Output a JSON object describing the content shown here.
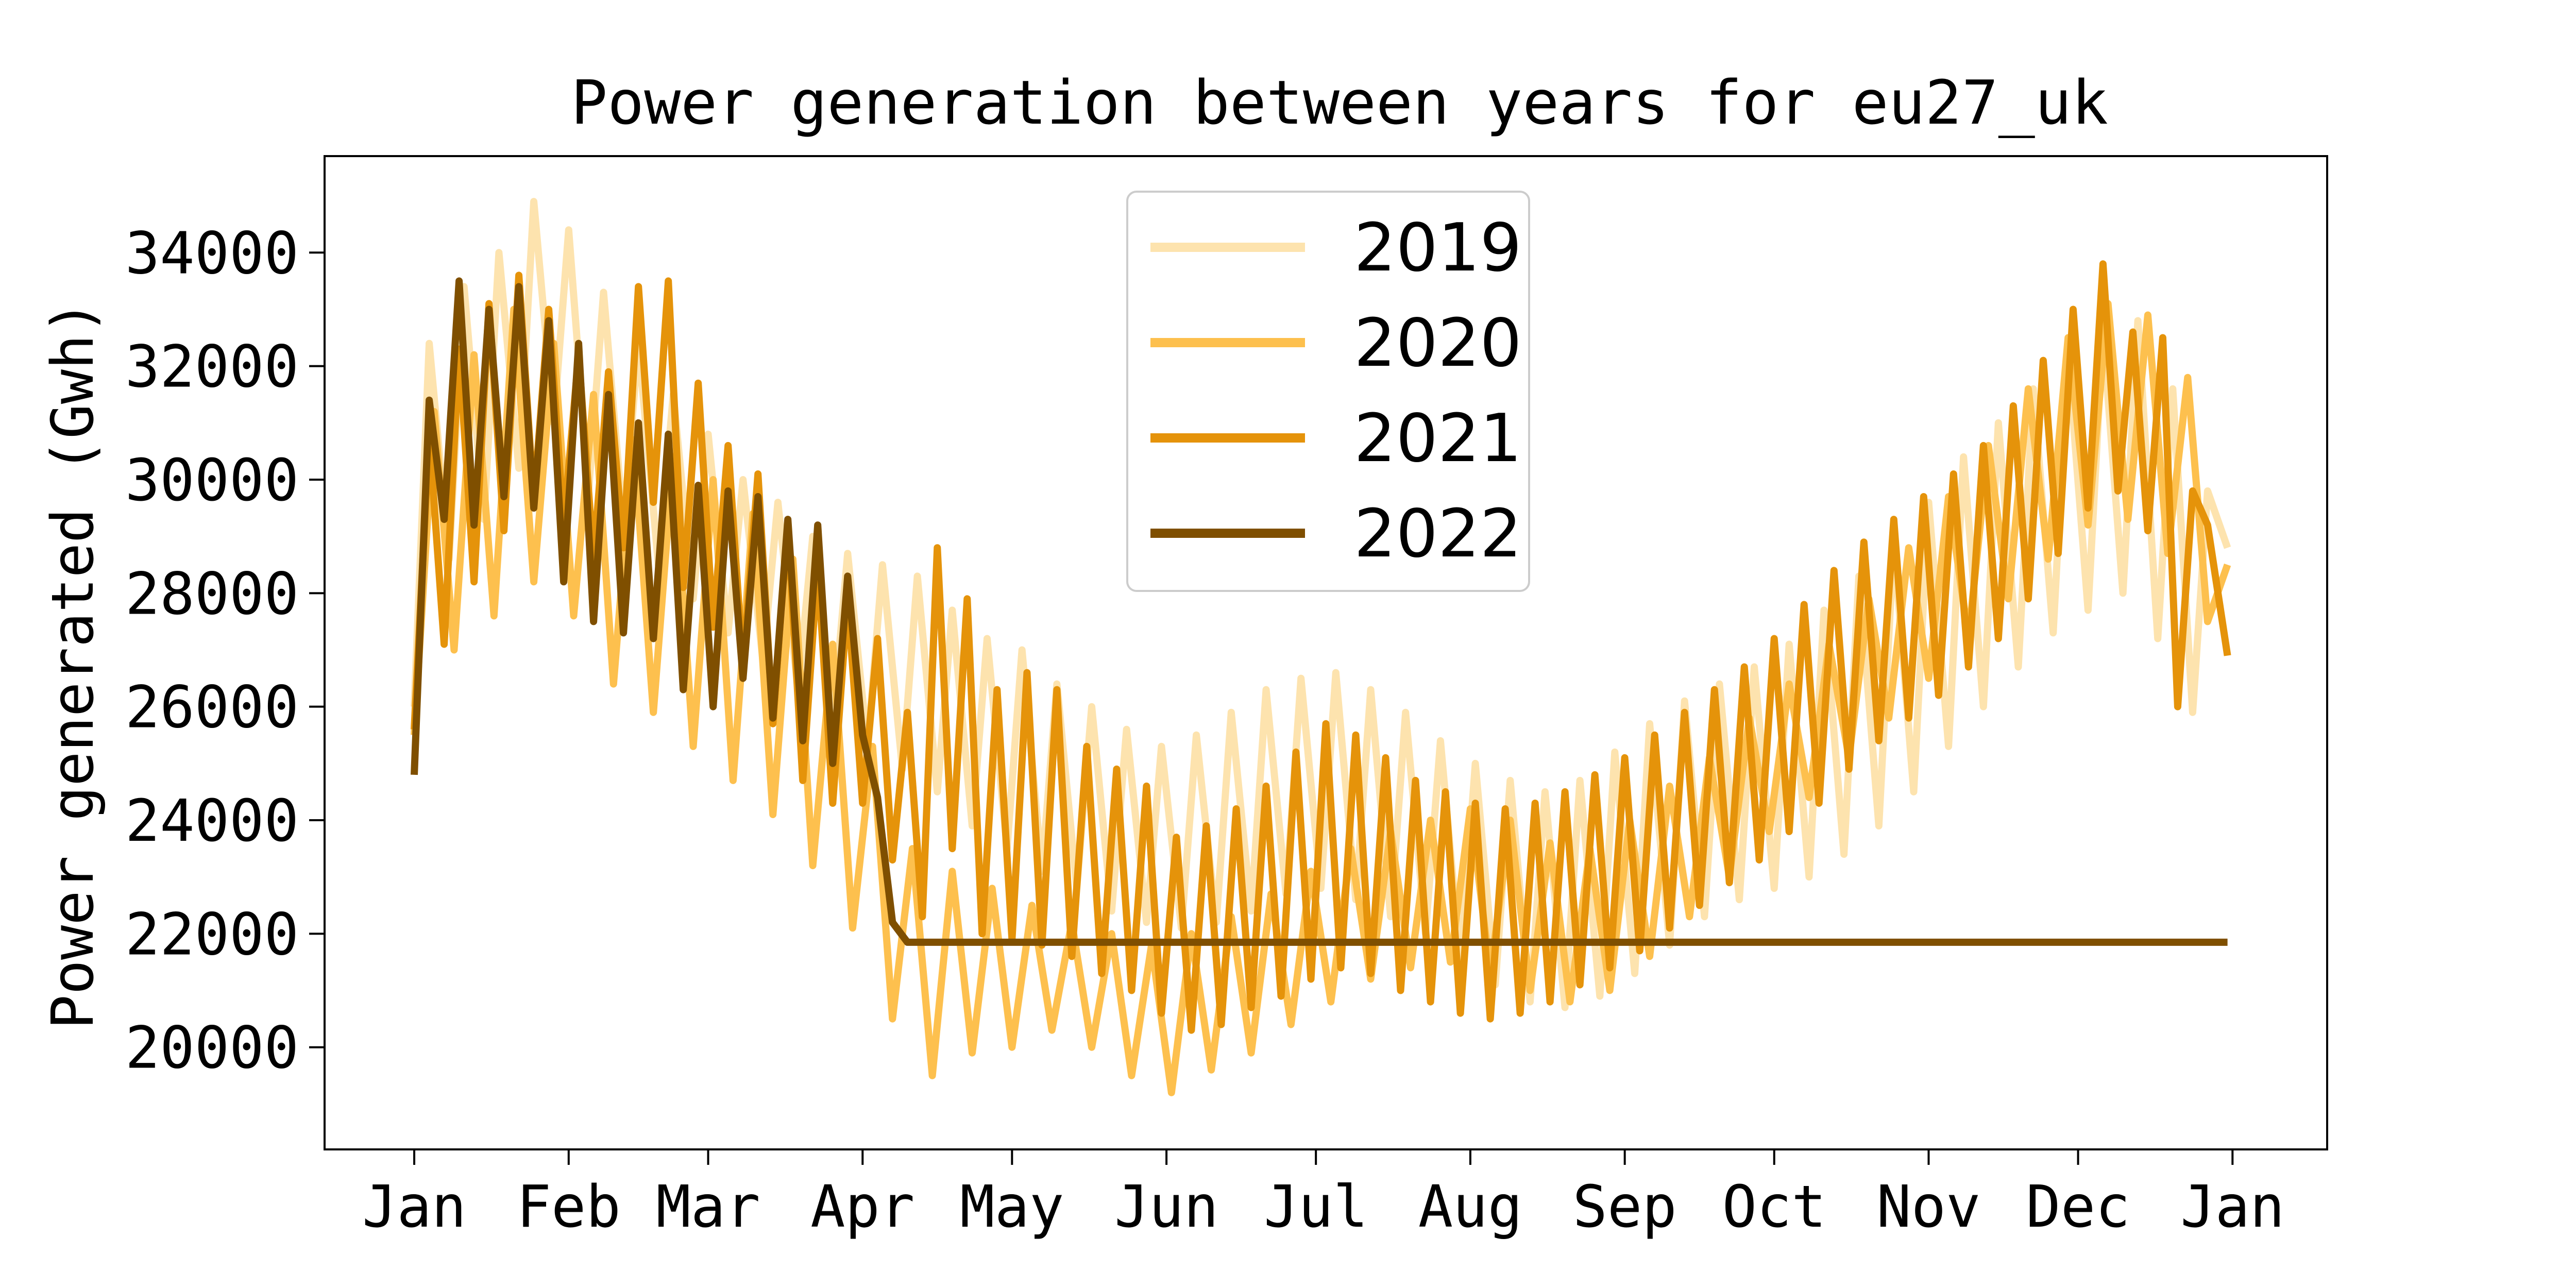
{
  "chart_data": {
    "type": "line",
    "title": "Power generation between years for eu27_uk",
    "xlabel": "",
    "ylabel": "Power generated (Gwh)",
    "x_tick_labels": [
      "Jan",
      "Feb",
      "Mar",
      "Apr",
      "May",
      "Jun",
      "Jul",
      "Aug",
      "Sep",
      "Oct",
      "Nov",
      "Dec",
      "Jan"
    ],
    "y_ticks": [
      20000,
      22000,
      24000,
      26000,
      28000,
      30000,
      32000,
      34000
    ],
    "y_tick_labels": [
      "20000",
      "22000",
      "24000",
      "26000",
      "28000",
      "30000",
      "32000",
      "34000"
    ],
    "xlim": [
      -18,
      384
    ],
    "ylim": [
      18200,
      35700
    ],
    "x_unit": "day of year",
    "legend": "top-center",
    "grid": false,
    "series": [
      {
        "name": "2019",
        "color": "#fde3ae",
        "x": [
          0,
          3,
          7,
          10,
          14,
          17,
          21,
          24,
          28,
          31,
          35,
          38,
          42,
          45,
          49,
          52,
          56,
          59,
          63,
          66,
          70,
          73,
          77,
          80,
          84,
          87,
          91,
          94,
          98,
          101,
          105,
          108,
          112,
          115,
          119,
          122,
          126,
          129,
          133,
          136,
          140,
          143,
          147,
          150,
          154,
          157,
          161,
          164,
          168,
          171,
          175,
          178,
          182,
          185,
          189,
          192,
          196,
          199,
          203,
          206,
          210,
          213,
          217,
          220,
          224,
          227,
          231,
          234,
          238,
          241,
          245,
          248,
          252,
          255,
          259,
          262,
          266,
          269,
          273,
          276,
          280,
          283,
          287,
          290,
          294,
          297,
          301,
          304,
          308,
          311,
          315,
          318,
          322,
          325,
          329,
          332,
          336,
          339,
          343,
          346,
          350,
          353,
          357,
          360,
          364
        ],
        "values": [
          26000,
          32400,
          28600,
          33400,
          29300,
          34000,
          30200,
          34900,
          31000,
          34400,
          29800,
          33300,
          29200,
          32400,
          28500,
          31500,
          27900,
          30800,
          27300,
          30000,
          26800,
          29600,
          26300,
          29000,
          25700,
          28700,
          25300,
          28500,
          24900,
          28300,
          24500,
          27700,
          23900,
          27200,
          23500,
          27000,
          23100,
          26400,
          22800,
          26000,
          22400,
          25600,
          22200,
          25300,
          22100,
          25500,
          22200,
          25900,
          22400,
          26300,
          22700,
          26500,
          22800,
          26600,
          22600,
          26300,
          22300,
          25900,
          22000,
          25400,
          21500,
          25000,
          21100,
          24700,
          20800,
          24500,
          20700,
          24700,
          20900,
          25200,
          21300,
          25700,
          21800,
          26100,
          22300,
          26400,
          22600,
          26700,
          22800,
          27100,
          23000,
          27700,
          23400,
          28300,
          23900,
          28900,
          24500,
          29600,
          25300,
          30400,
          26000,
          31000,
          26700,
          31600,
          27300,
          32200,
          27700,
          32600,
          28000,
          32800,
          27200,
          31600,
          25900,
          29800,
          28800
        ]
      },
      {
        "name": "2020",
        "color": "#fdc04e",
        "x": [
          0,
          4,
          8,
          12,
          16,
          20,
          24,
          28,
          32,
          36,
          40,
          44,
          48,
          52,
          56,
          60,
          64,
          68,
          72,
          76,
          80,
          84,
          88,
          92,
          96,
          100,
          104,
          108,
          112,
          116,
          120,
          124,
          128,
          132,
          136,
          140,
          144,
          148,
          152,
          156,
          160,
          164,
          168,
          172,
          176,
          180,
          184,
          188,
          192,
          196,
          200,
          204,
          208,
          212,
          216,
          220,
          224,
          228,
          232,
          236,
          240,
          244,
          248,
          252,
          256,
          260,
          264,
          268,
          272,
          276,
          280,
          284,
          288,
          292,
          296,
          300,
          304,
          308,
          312,
          316,
          320,
          324,
          328,
          332,
          336,
          340,
          344,
          348,
          352,
          356,
          360,
          364
        ],
        "values": [
          25500,
          31200,
          27000,
          32200,
          27600,
          33000,
          28200,
          32400,
          27600,
          31500,
          26400,
          30700,
          25900,
          30400,
          25300,
          30000,
          24700,
          29400,
          24100,
          28600,
          23200,
          27100,
          22100,
          25300,
          20500,
          23500,
          19500,
          23100,
          19900,
          22800,
          20000,
          22500,
          20300,
          22200,
          20000,
          22000,
          19500,
          21800,
          19200,
          22000,
          19600,
          22300,
          19900,
          22700,
          20400,
          23100,
          20800,
          23500,
          21200,
          23800,
          21400,
          24000,
          21500,
          24200,
          21300,
          24000,
          21000,
          23600,
          20800,
          23500,
          21000,
          24000,
          21600,
          24600,
          22300,
          25100,
          23000,
          25800,
          23800,
          26400,
          24400,
          27100,
          25100,
          27900,
          25800,
          28800,
          26500,
          29700,
          27200,
          30600,
          27900,
          31600,
          28600,
          32500,
          29200,
          33100,
          29300,
          32900,
          28700,
          31800,
          27500,
          28500
        ]
      },
      {
        "name": "2021",
        "color": "#e5930a",
        "x": [
          0,
          3,
          6,
          9,
          12,
          15,
          18,
          21,
          24,
          27,
          30,
          33,
          36,
          39,
          42,
          45,
          48,
          51,
          54,
          57,
          60,
          63,
          66,
          69,
          72,
          75,
          78,
          81,
          84,
          87,
          90,
          93,
          96,
          99,
          102,
          105,
          108,
          111,
          114,
          117,
          120,
          123,
          126,
          129,
          132,
          135,
          138,
          141,
          144,
          147,
          150,
          153,
          156,
          159,
          162,
          165,
          168,
          171,
          174,
          177,
          180,
          183,
          186,
          189,
          192,
          195,
          198,
          201,
          204,
          207,
          210,
          213,
          216,
          219,
          222,
          225,
          228,
          231,
          234,
          237,
          240,
          243,
          246,
          249,
          252,
          255,
          258,
          261,
          264,
          267,
          270,
          273,
          276,
          279,
          282,
          285,
          288,
          291,
          294,
          297,
          300,
          303,
          306,
          309,
          312,
          315,
          318,
          321,
          324,
          327,
          330,
          333,
          336,
          339,
          342,
          345,
          348,
          351,
          354,
          357,
          360,
          364
        ],
        "values": [
          25600,
          30800,
          27100,
          32300,
          28200,
          33100,
          29100,
          33600,
          29600,
          33000,
          29200,
          32200,
          28600,
          31900,
          28800,
          33400,
          29600,
          33500,
          28100,
          31700,
          27400,
          30600,
          26700,
          30100,
          25700,
          29200,
          24700,
          28500,
          24300,
          27900,
          24300,
          27200,
          23300,
          25900,
          22300,
          28800,
          23500,
          27900,
          22000,
          26300,
          21900,
          26600,
          21800,
          26300,
          21600,
          25300,
          21300,
          24900,
          21000,
          24600,
          20600,
          23700,
          20300,
          23900,
          20400,
          24200,
          20700,
          24600,
          20900,
          25200,
          21200,
          25700,
          21400,
          25500,
          21300,
          25100,
          21000,
          24700,
          20800,
          24500,
          20600,
          24300,
          20500,
          24200,
          20600,
          24300,
          20800,
          24500,
          21100,
          24800,
          21400,
          25100,
          21700,
          25500,
          22100,
          25900,
          22500,
          26300,
          22900,
          26700,
          23300,
          27200,
          23800,
          27800,
          24300,
          28400,
          24900,
          28900,
          25400,
          29300,
          25800,
          29700,
          26200,
          30100,
          26700,
          30600,
          27200,
          31300,
          27900,
          32100,
          28700,
          33000,
          29500,
          33800,
          29800,
          32600,
          29100,
          32500,
          26000,
          29800,
          29200,
          26900
        ]
      },
      {
        "name": "2022",
        "color": "#7f4f00",
        "x": [
          0,
          3,
          6,
          9,
          12,
          15,
          18,
          21,
          24,
          27,
          30,
          33,
          36,
          39,
          42,
          45,
          48,
          51,
          54,
          57,
          60,
          63,
          66,
          69,
          72,
          75,
          78,
          81,
          84,
          87,
          90,
          93,
          96,
          99,
          102,
          105,
          108,
          111,
          114,
          117,
          120,
          240,
          364
        ],
        "values": [
          24800,
          31400,
          29300,
          33500,
          29200,
          33000,
          29700,
          33400,
          29500,
          32800,
          28200,
          32400,
          27500,
          31500,
          27300,
          31000,
          27200,
          30800,
          26300,
          29900,
          26000,
          29800,
          26500,
          29700,
          25800,
          29300,
          25400,
          29200,
          25000,
          28300,
          25500,
          24400,
          22200,
          21850,
          21850,
          21850,
          21850,
          21850,
          21850,
          21850,
          21850,
          21850,
          21850
        ]
      }
    ]
  }
}
